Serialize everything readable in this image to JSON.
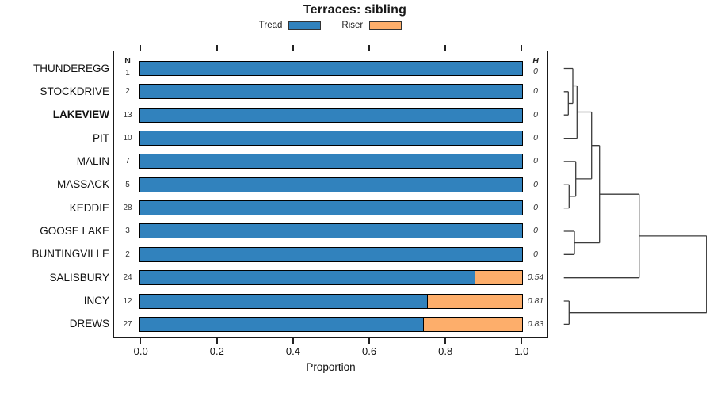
{
  "title": "Terraces: sibling",
  "legend": [
    {
      "label": "Tread",
      "color": "#3182BD"
    },
    {
      "label": "Riser",
      "color": "#FDAE6B"
    }
  ],
  "columns": {
    "n_header": "N",
    "h_header": "H"
  },
  "axis": {
    "label": "Proportion",
    "tick_labels": [
      "0.0",
      "0.2",
      "0.4",
      "0.6",
      "0.8",
      "1.0"
    ],
    "tick_values": [
      0,
      0.2,
      0.4,
      0.6,
      0.8,
      1.0
    ]
  },
  "chart_data": {
    "type": "bar",
    "orientation": "horizontal",
    "stacked": true,
    "title": "Terraces: sibling",
    "xlabel": "Proportion",
    "xlim": [
      0,
      1
    ],
    "grid": false,
    "legend_position": "top",
    "categories": [
      "THUNDEREGG",
      "STOCKDRIVE",
      "LAKEVIEW",
      "PIT",
      "MALIN",
      "MASSACK",
      "KEDDIE",
      "GOOSE LAKE",
      "BUNTINGVILLE",
      "SALISBURY",
      "INCY",
      "DREWS"
    ],
    "bold_categories": [
      "LAKEVIEW"
    ],
    "n_values": [
      1,
      2,
      13,
      10,
      7,
      5,
      28,
      3,
      2,
      24,
      12,
      27
    ],
    "h_values": [
      "0",
      "0",
      "0",
      "0",
      "0",
      "0",
      "0",
      "0",
      "0",
      "0.54",
      "0.81",
      "0.83"
    ],
    "series": [
      {
        "name": "Tread",
        "color": "#3182BD",
        "values": [
          1,
          1,
          1,
          1,
          1,
          1,
          1,
          1,
          1,
          0.875,
          0.75,
          0.74
        ]
      },
      {
        "name": "Riser",
        "color": "#FDAE6B",
        "values": [
          0,
          0,
          0,
          0,
          0,
          0,
          0,
          0,
          0,
          0.125,
          0.25,
          0.26
        ]
      }
    ],
    "dendrogram": {
      "side": "right",
      "leaf_order": [
        "THUNDEREGG",
        "STOCKDRIVE",
        "LAKEVIEW",
        "PIT",
        "MALIN",
        "MASSACK",
        "KEDDIE",
        "GOOSE LAKE",
        "BUNTINGVILLE",
        "SALISBURY",
        "INCY",
        "DREWS"
      ],
      "merges": [
        [
          1,
          2,
          5.6
        ],
        [
          0,
          12,
          11.3
        ],
        [
          13,
          3,
          16.6
        ],
        [
          5,
          6,
          6.6
        ],
        [
          4,
          15,
          15
        ],
        [
          14,
          16,
          35
        ],
        [
          7,
          8,
          13.3
        ],
        [
          17,
          18,
          45
        ],
        [
          19,
          9,
          95
        ],
        [
          10,
          11,
          6.6
        ],
        [
          20,
          21,
          180
        ]
      ]
    }
  }
}
